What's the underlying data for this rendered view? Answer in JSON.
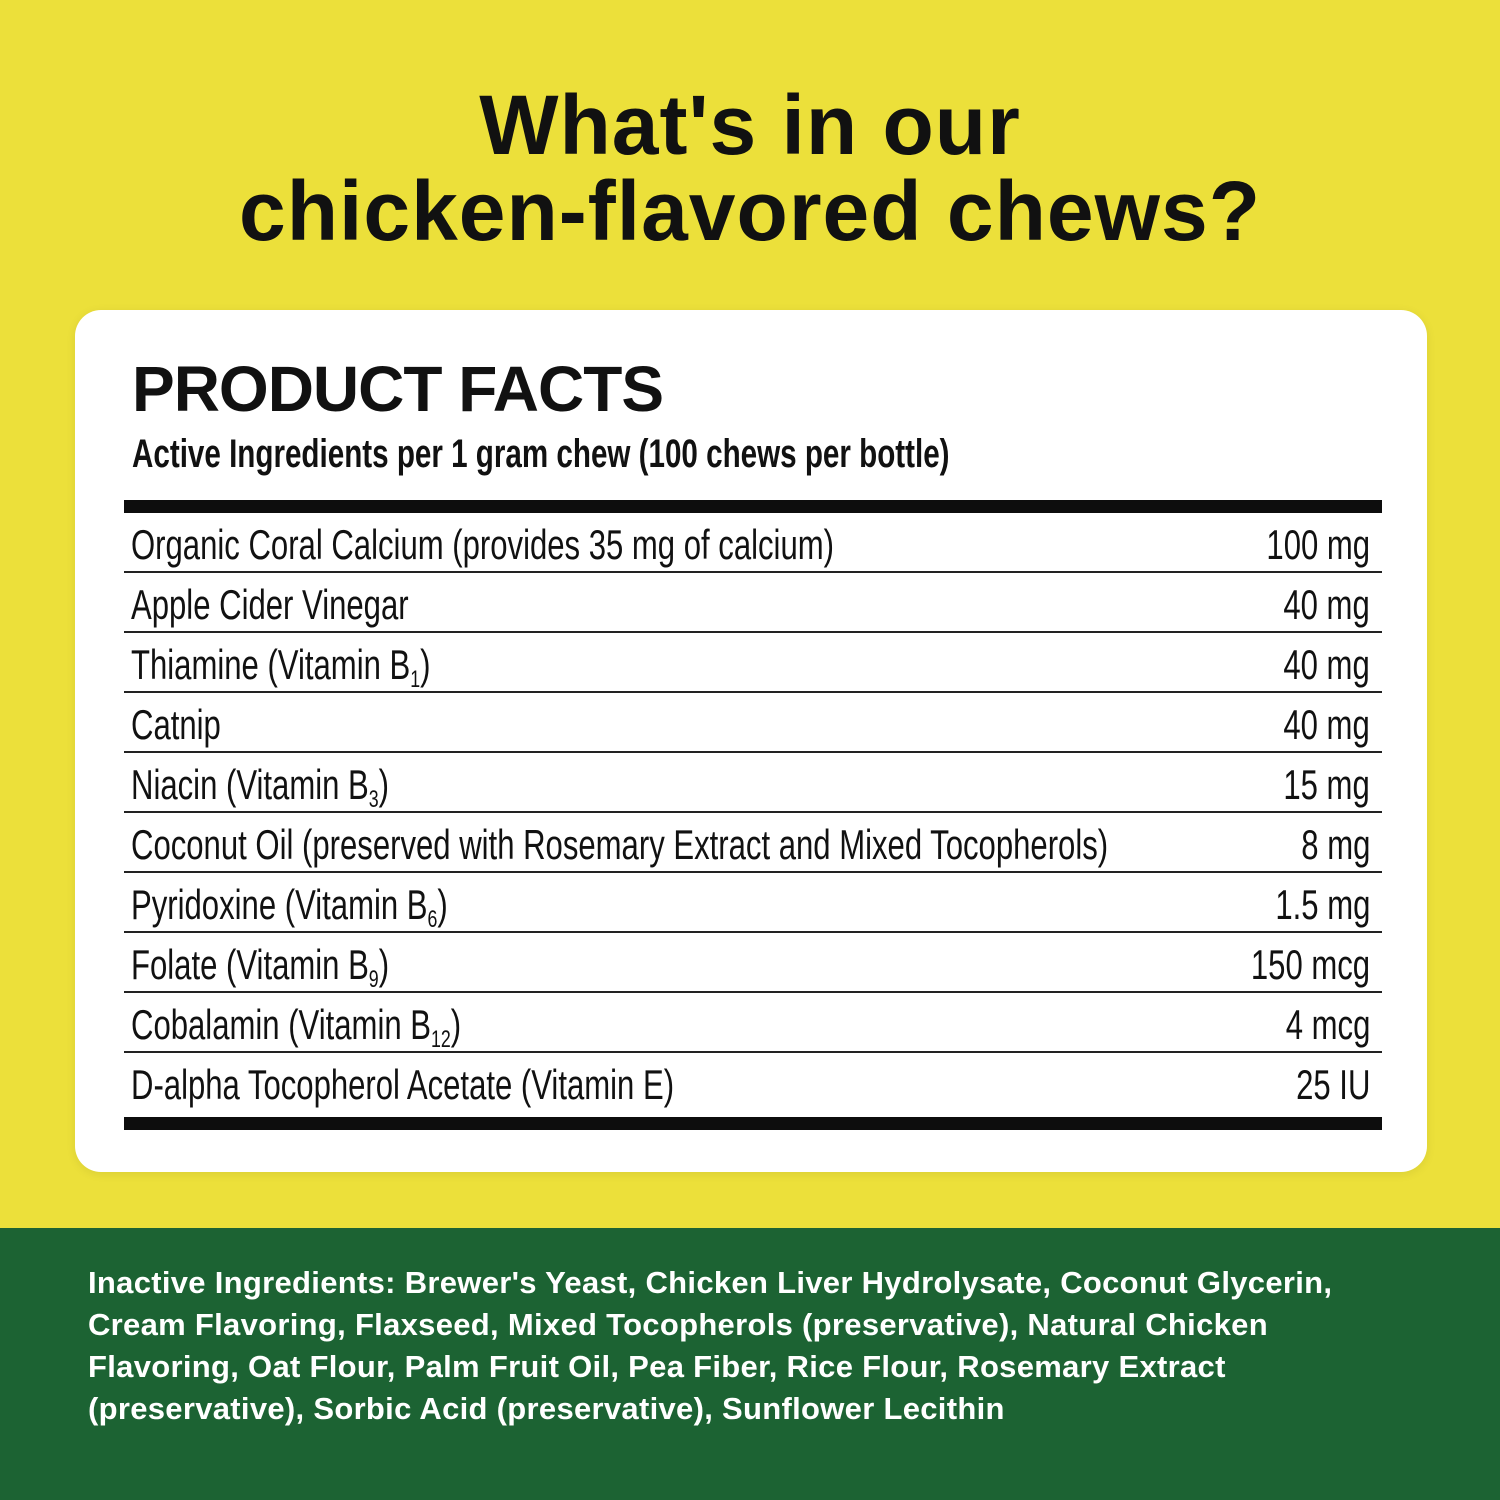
{
  "headline": {
    "line1": "What's in our",
    "line2": "chicken-flavored chews?"
  },
  "card": {
    "title": "PRODUCT FACTS",
    "subtitle": "Active Ingredients per 1 gram chew (100 chews per bottle)",
    "rows": [
      {
        "name": "Organic Coral Calcium (provides 35 mg of calcium)",
        "sub": "",
        "suffix": "",
        "amount": "100 mg"
      },
      {
        "name": "Apple Cider Vinegar",
        "sub": "",
        "suffix": "",
        "amount": "40 mg"
      },
      {
        "name": "Thiamine (Vitamin B",
        "sub": "1",
        "suffix": ")",
        "amount": "40 mg"
      },
      {
        "name": "Catnip",
        "sub": "",
        "suffix": "",
        "amount": "40 mg"
      },
      {
        "name": "Niacin (Vitamin B",
        "sub": "3",
        "suffix": ")",
        "amount": "15 mg"
      },
      {
        "name": "Coconut Oil (preserved with Rosemary Extract and Mixed Tocopherols)",
        "sub": "",
        "suffix": "",
        "amount": "8 mg"
      },
      {
        "name": "Pyridoxine (Vitamin B",
        "sub": "6",
        "suffix": ")",
        "amount": "1.5 mg"
      },
      {
        "name": "Folate (Vitamin B",
        "sub": "9",
        "suffix": ")",
        "amount": "150 mcg"
      },
      {
        "name": "Cobalamin (Vitamin B",
        "sub": "12",
        "suffix": ")",
        "amount": "4 mcg"
      },
      {
        "name": "D-alpha Tocopherol Acetate (Vitamin E)",
        "sub": "",
        "suffix": "",
        "amount": "25 IU"
      }
    ]
  },
  "footer": {
    "label": "Inactive Ingredients:",
    "text": "Brewer's Yeast, Chicken Liver Hydrolysate, Coconut Glycerin, Cream Flavoring, Flaxseed, Mixed Tocopherols (preservative), Natural Chicken Flavoring, Oat Flour, Palm Fruit Oil, Pea Fiber, Rice Flour, Rosemary Extract (preservative), Sorbic Acid (preservative), Sunflower Lecithin"
  },
  "colors": {
    "background": "#ECE03A",
    "footer": "#1C6333",
    "card": "#FFFFFF",
    "text": "#111111"
  }
}
